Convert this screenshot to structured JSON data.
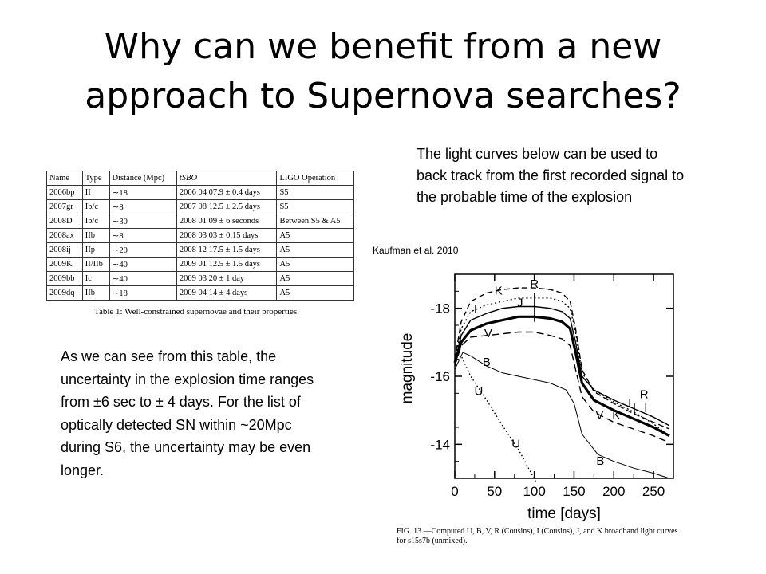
{
  "slide": {
    "title_lines": [
      "Why can we benefit from a new",
      "approach to Supernova searches?"
    ],
    "intro_text": "The light curves below can be used to back track from the first recorded signal to the probable time of the explosion",
    "citation": "Kaufman et al. 2010",
    "body_text": "As we can see from this table, the uncertainty in the explosion time ranges from ±6 sec to ± 4 days. For the list of optically detected SN within ~20Mpc during S6, the uncertainty may be even longer."
  },
  "table": {
    "headers": [
      "Name",
      "Type",
      "Distance (Mpc)",
      "tSBO",
      "LIGO Operation"
    ],
    "rows": [
      [
        "2006bp",
        "II",
        "∼18",
        "2006 04 07.9 ± 0.4 days",
        "S5"
      ],
      [
        "2007gr",
        "Ib/c",
        "∼8",
        "2007 08 12.5 ± 2.5 days",
        "S5"
      ],
      [
        "2008D",
        "Ib/c",
        "∼30",
        "2008 01 09 ± 6 seconds",
        "Between S5 & A5"
      ],
      [
        "2008ax",
        "IIb",
        "∼8",
        "2008 03 03 ± 0.15 days",
        "A5"
      ],
      [
        "2008ij",
        "IIp",
        "∼20",
        "2008 12 17.5 ± 1.5 days",
        "A5"
      ],
      [
        "2009K",
        "II/IIb",
        "∼40",
        "2009 01 12.5 ± 1.5 days",
        "A5"
      ],
      [
        "2009bb",
        "Ic",
        "∼40",
        "2009 03 20 ± 1 day",
        "A5"
      ],
      [
        "2009dq",
        "IIb",
        "∼18",
        "2009 04 14 ± 4 days",
        "A5"
      ]
    ],
    "caption": "Table 1: Well-constrained supernovae and their properties."
  },
  "figure_caption": "FIG. 13.—Computed U, B, V, R (Cousins), I (Cousins), J, and K broadband light curves for s15s7b (unmixed).",
  "chart_data": {
    "type": "line",
    "title": "",
    "xlabel": "time [days]",
    "ylabel": "magnitude",
    "xlim": [
      0,
      275
    ],
    "ylim": [
      -13.0,
      -19.0
    ],
    "y_inverted": true,
    "x_ticks": [
      0,
      50,
      100,
      150,
      200,
      250
    ],
    "y_ticks": [
      -18,
      -16,
      -14
    ],
    "series": [
      {
        "name": "K",
        "dash": "7,4",
        "width": 1.4,
        "label_at": [
          55,
          -18.4
        ],
        "points": [
          [
            0,
            -16.5
          ],
          [
            8,
            -17.6
          ],
          [
            20,
            -18.2
          ],
          [
            40,
            -18.45
          ],
          [
            60,
            -18.55
          ],
          [
            80,
            -18.6
          ],
          [
            100,
            -18.6
          ],
          [
            120,
            -18.55
          ],
          [
            135,
            -18.45
          ],
          [
            145,
            -18.2
          ],
          [
            152,
            -17.4
          ],
          [
            160,
            -16.2
          ],
          [
            175,
            -15.55
          ],
          [
            200,
            -15.2
          ],
          [
            225,
            -14.9
          ],
          [
            250,
            -14.65
          ],
          [
            270,
            -14.45
          ]
        ]
      },
      {
        "name": "J",
        "dash": "2,3",
        "width": 1.4,
        "label_at": [
          82,
          -18.05
        ],
        "points": [
          [
            0,
            -16.4
          ],
          [
            8,
            -17.4
          ],
          [
            20,
            -17.9
          ],
          [
            40,
            -18.1
          ],
          [
            60,
            -18.2
          ],
          [
            80,
            -18.3
          ],
          [
            100,
            -18.3
          ],
          [
            120,
            -18.3
          ],
          [
            135,
            -18.2
          ],
          [
            145,
            -18.0
          ],
          [
            152,
            -17.3
          ],
          [
            160,
            -16.1
          ],
          [
            175,
            -15.6
          ],
          [
            200,
            -15.25
          ],
          [
            225,
            -14.95
          ],
          [
            250,
            -14.6
          ],
          [
            270,
            -14.25
          ]
        ]
      },
      {
        "name": "I",
        "dash": "",
        "width": 1.4,
        "label_at": [
          26,
          -17.85
        ],
        "points": [
          [
            0,
            -16.4
          ],
          [
            8,
            -17.2
          ],
          [
            20,
            -17.65
          ],
          [
            40,
            -17.85
          ],
          [
            60,
            -18.0
          ],
          [
            80,
            -18.05
          ],
          [
            100,
            -18.05
          ],
          [
            120,
            -18.0
          ],
          [
            135,
            -17.9
          ],
          [
            145,
            -17.7
          ],
          [
            152,
            -17.0
          ],
          [
            160,
            -16.0
          ],
          [
            175,
            -15.6
          ],
          [
            200,
            -15.3
          ],
          [
            225,
            -15.05
          ],
          [
            250,
            -14.8
          ],
          [
            270,
            -14.55
          ]
        ]
      },
      {
        "name": "R",
        "dash": "",
        "width": 3.2,
        "label_at": [
          100,
          -18.6
        ],
        "points": [
          [
            0,
            -16.4
          ],
          [
            8,
            -17.0
          ],
          [
            20,
            -17.35
          ],
          [
            40,
            -17.55
          ],
          [
            60,
            -17.65
          ],
          [
            80,
            -17.75
          ],
          [
            100,
            -17.75
          ],
          [
            120,
            -17.7
          ],
          [
            135,
            -17.6
          ],
          [
            145,
            -17.4
          ],
          [
            152,
            -16.7
          ],
          [
            160,
            -15.8
          ],
          [
            175,
            -15.3
          ],
          [
            200,
            -15.0
          ],
          [
            225,
            -14.75
          ],
          [
            250,
            -14.5
          ],
          [
            270,
            -14.25
          ]
        ]
      },
      {
        "name": "V",
        "dash": "9,5",
        "width": 1.4,
        "label_at": [
          42,
          -17.15
        ],
        "points": [
          [
            0,
            -16.3
          ],
          [
            8,
            -16.9
          ],
          [
            20,
            -17.15
          ],
          [
            40,
            -17.2
          ],
          [
            60,
            -17.25
          ],
          [
            80,
            -17.3
          ],
          [
            100,
            -17.3
          ],
          [
            120,
            -17.2
          ],
          [
            135,
            -17.1
          ],
          [
            145,
            -16.9
          ],
          [
            152,
            -16.2
          ],
          [
            160,
            -15.4
          ],
          [
            175,
            -14.95
          ],
          [
            200,
            -14.65
          ],
          [
            225,
            -14.45
          ],
          [
            250,
            -14.25
          ],
          [
            270,
            -14.05
          ]
        ]
      },
      {
        "name": "B",
        "dash": "",
        "width": 1.0,
        "label_at": [
          40,
          -16.3
        ],
        "points": [
          [
            0,
            -16.2
          ],
          [
            10,
            -16.7
          ],
          [
            20,
            -16.6
          ],
          [
            40,
            -16.3
          ],
          [
            60,
            -16.1
          ],
          [
            80,
            -16.0
          ],
          [
            100,
            -15.9
          ],
          [
            120,
            -15.8
          ],
          [
            140,
            -15.6
          ],
          [
            150,
            -15.2
          ],
          [
            160,
            -14.3
          ],
          [
            180,
            -13.7
          ],
          [
            200,
            -13.5
          ],
          [
            225,
            -13.3
          ],
          [
            250,
            -13.15
          ],
          [
            270,
            -13.0
          ]
        ]
      },
      {
        "name": "U",
        "dash": "1.5,3",
        "width": 1.4,
        "label_at": [
          30,
          -15.45
        ],
        "points": [
          [
            0,
            -16.4
          ],
          [
            8,
            -16.6
          ],
          [
            20,
            -16.0
          ],
          [
            40,
            -15.3
          ],
          [
            60,
            -14.55
          ],
          [
            80,
            -13.85
          ],
          [
            95,
            -13.2
          ],
          [
            102,
            -12.9
          ]
        ]
      }
    ],
    "extra_labels": [
      {
        "text": "R",
        "at": [
          238,
          -15.35
        ]
      },
      {
        "text": "I",
        "at": [
          220,
          -15.1
        ]
      },
      {
        "text": "V",
        "at": [
          182,
          -14.75
        ]
      },
      {
        "text": "K",
        "at": [
          203,
          -14.75
        ]
      },
      {
        "text": "U",
        "at": [
          77,
          -13.9
        ]
      },
      {
        "text": "B",
        "at": [
          183,
          -13.4
        ]
      }
    ]
  }
}
